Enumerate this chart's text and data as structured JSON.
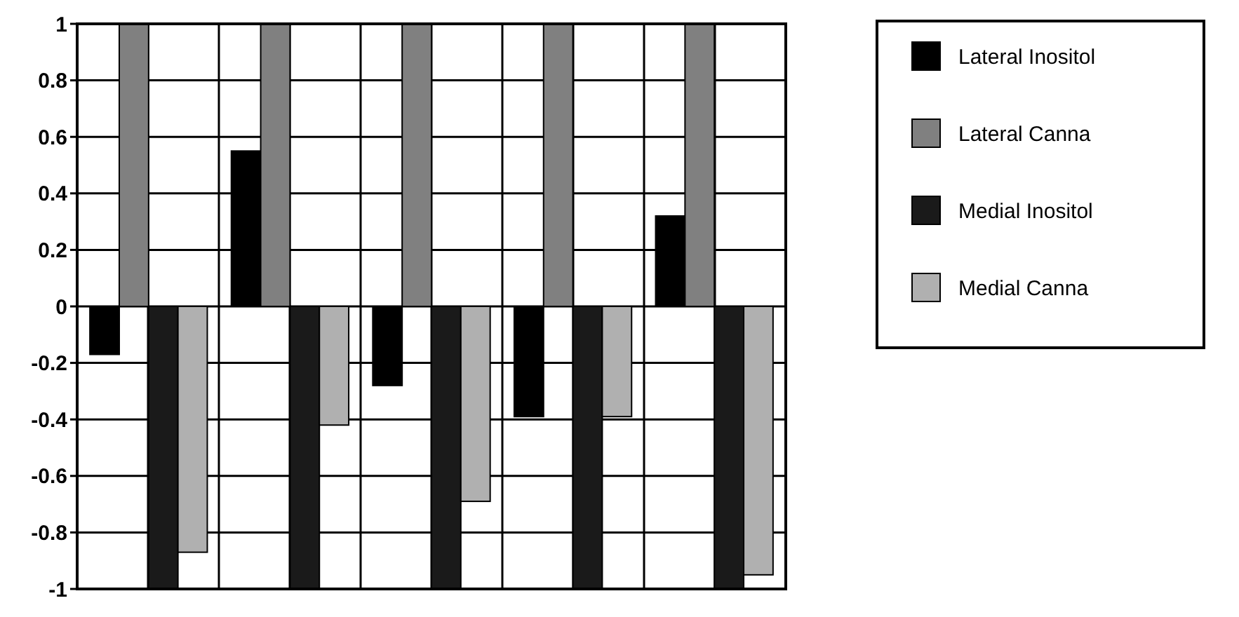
{
  "chart_data": {
    "type": "bar",
    "categories": [
      null,
      null,
      null,
      null,
      null
    ],
    "series": [
      {
        "name": "Lateral Inositol",
        "color": "#000000",
        "values": [
          -0.17,
          0.55,
          -0.28,
          -0.39,
          0.32
        ]
      },
      {
        "name": "Lateral Canna",
        "color": "#808080",
        "values": [
          1,
          1,
          1,
          1,
          1
        ]
      },
      {
        "name": "Medial Inositol",
        "color": "#1a1a1a",
        "values": [
          -1,
          -1,
          -1,
          -1,
          -1
        ]
      },
      {
        "name": "Medial Canna",
        "color": "#b0b0b0",
        "values": [
          -0.87,
          -0.42,
          -0.69,
          -0.39,
          -0.95
        ]
      }
    ],
    "ylim": [
      -1,
      1
    ],
    "yticks": [
      {
        "value": -1,
        "label": "-1"
      },
      {
        "value": -0.8,
        "label": "-0.8"
      },
      {
        "value": -0.6,
        "label": "-0.6"
      },
      {
        "value": -0.4,
        "label": "-0.4"
      },
      {
        "value": -0.2,
        "label": "-0.2"
      },
      0,
      0.2,
      0.4,
      0.6,
      0.8,
      1
    ],
    "grid": true,
    "legend": "top right"
  }
}
